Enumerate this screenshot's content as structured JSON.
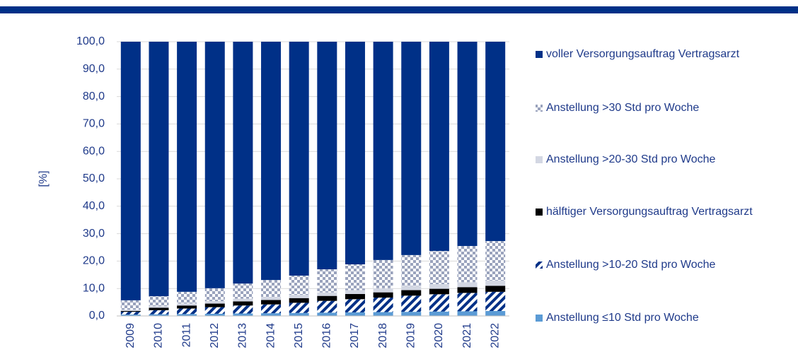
{
  "chart_data": {
    "type": "stacked_bar",
    "ylabel": "[%]",
    "categories": [
      "2009",
      "2010",
      "2011",
      "2012",
      "2013",
      "2014",
      "2015",
      "2016",
      "2017",
      "2018",
      "2019",
      "2020",
      "2021",
      "2022"
    ],
    "series": [
      {
        "name": "Anstellung ≤10 Std pro Woche",
        "color": "#5b9bd5",
        "values": [
          0.5,
          0.6,
          0.7,
          0.8,
          0.9,
          1.0,
          1.1,
          1.2,
          1.3,
          1.4,
          1.5,
          1.6,
          1.7,
          1.8
        ]
      },
      {
        "name": "Anstellung >10-20 Std pro Woche",
        "color": "#003087",
        "pattern": "diagonal",
        "values": [
          1.0,
          1.5,
          2.0,
          2.4,
          2.9,
          3.2,
          3.7,
          4.3,
          4.8,
          5.3,
          5.9,
          6.3,
          6.7,
          7.0
        ]
      },
      {
        "name": "hälftiger Versorgungsauftrag Vertragsarzt",
        "color": "#000000",
        "values": [
          0.3,
          0.9,
          1.1,
          1.3,
          1.5,
          1.6,
          1.7,
          1.8,
          1.9,
          1.9,
          2.0,
          2.0,
          2.1,
          2.2
        ]
      },
      {
        "name": "Anstellung >20-30 Std pro Woche",
        "color": "#d3d7e3",
        "values": [
          0.5,
          0.6,
          0.8,
          0.9,
          1.0,
          1.1,
          1.2,
          1.3,
          1.4,
          1.5,
          1.6,
          1.7,
          1.8,
          1.9
        ]
      },
      {
        "name": "Anstellung >30 Std pro Woche",
        "color": "#9aa3bd",
        "pattern": "checker",
        "values": [
          3.4,
          3.6,
          4.2,
          4.7,
          5.5,
          6.2,
          7.0,
          8.4,
          9.4,
          10.3,
          11.2,
          12.1,
          13.2,
          14.4
        ]
      },
      {
        "name": "voller Versorgungsauftrag Vertragsarzt",
        "color": "#003087",
        "values": [
          94.3,
          92.8,
          91.2,
          89.9,
          88.2,
          86.9,
          85.3,
          83.0,
          81.2,
          79.6,
          77.8,
          76.3,
          74.5,
          72.7
        ]
      }
    ],
    "ylim": [
      0,
      100
    ],
    "yticks": [
      {
        "value": 0,
        "label": "0,0"
      },
      {
        "value": 10,
        "label": "10,0"
      },
      {
        "value": 20,
        "label": "20,0"
      },
      {
        "value": 30,
        "label": "30,0"
      },
      {
        "value": 40,
        "label": "40,0"
      },
      {
        "value": 50,
        "label": "50,0"
      },
      {
        "value": 60,
        "label": "60,0"
      },
      {
        "value": 70,
        "label": "70,0"
      },
      {
        "value": 80,
        "label": "80,0"
      },
      {
        "value": 90,
        "label": "90,0"
      },
      {
        "value": 100,
        "label": "100,0"
      }
    ],
    "grid": true,
    "legend": "right"
  }
}
